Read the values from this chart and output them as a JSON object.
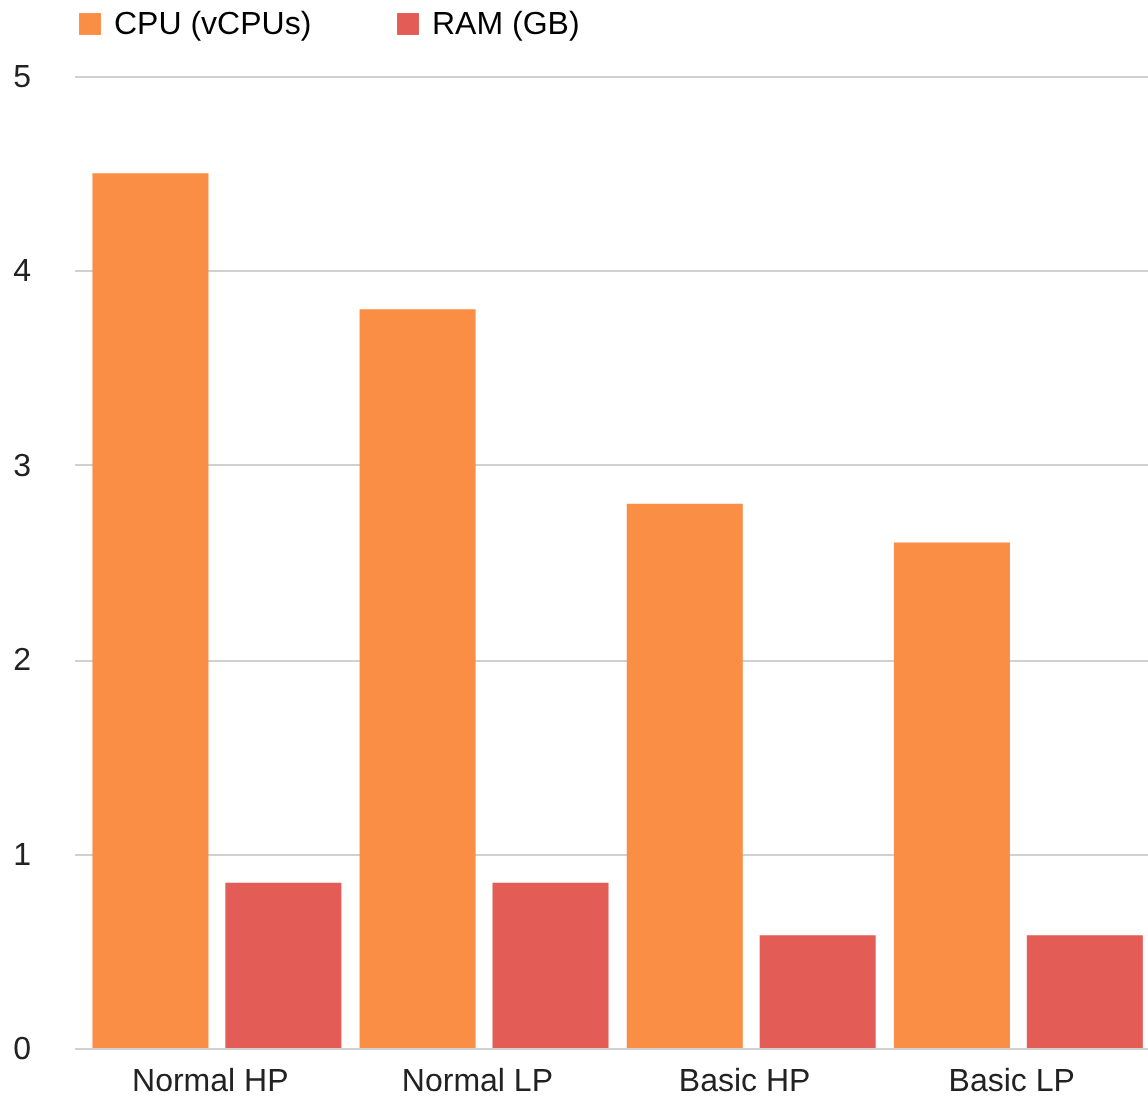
{
  "chart_data": {
    "type": "bar",
    "categories": [
      "Normal HP",
      "Normal LP",
      "Basic HP",
      "Basic LP"
    ],
    "series": [
      {
        "name": "CPU (vCPUs)",
        "color": "#fb8e45",
        "values": [
          4.5,
          3.8,
          2.8,
          2.6
        ]
      },
      {
        "name": "RAM (GB)",
        "color": "#e35d56",
        "values": [
          0.85,
          0.85,
          0.58,
          0.58
        ]
      }
    ],
    "ylim": [
      0,
      5
    ],
    "yticks": [
      0,
      1,
      2,
      3,
      4,
      5
    ],
    "grid": "y",
    "legend": "top"
  }
}
